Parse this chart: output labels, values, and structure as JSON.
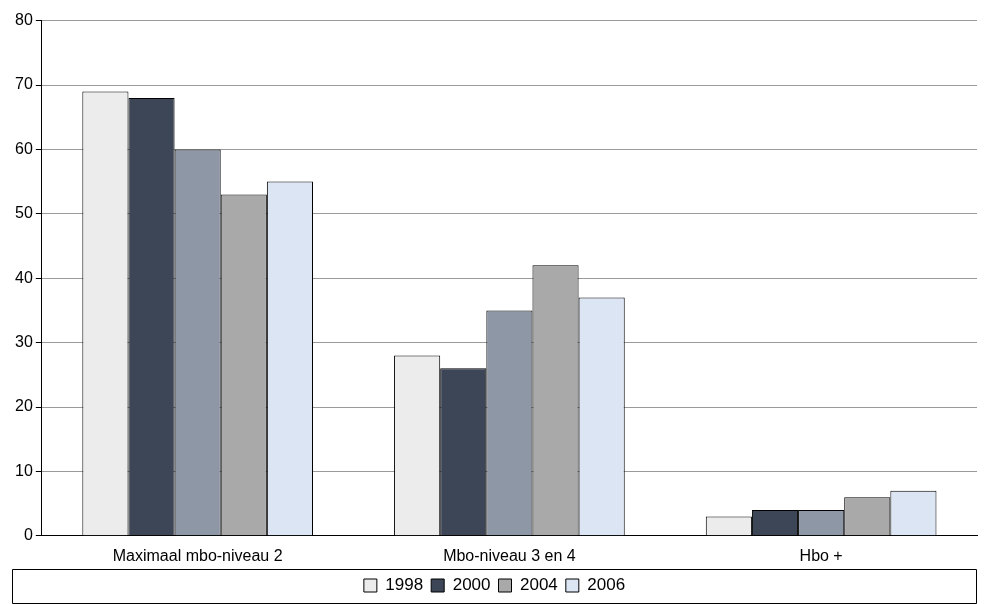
{
  "chart_data": {
    "type": "bar",
    "categories": [
      "Maximaal mbo-niveau 2",
      "Mbo-niveau 3 en 4",
      "Hbo +"
    ],
    "series": [
      {
        "name": "1998",
        "color": "#ececec",
        "values": [
          69,
          28,
          3
        ]
      },
      {
        "name": "2000",
        "color": "#3d4657",
        "values": [
          68,
          26,
          4
        ]
      },
      {
        "color": "#8e97a6",
        "values": [
          60,
          35,
          4
        ]
      },
      {
        "name": "2004",
        "color": "#a9a9a9",
        "values": [
          53,
          42,
          6
        ]
      },
      {
        "name": "2006",
        "color": "#dce5f4",
        "values": [
          55,
          37,
          7
        ]
      }
    ],
    "ylim": [
      0,
      80
    ],
    "yticks": [
      0,
      10,
      20,
      30,
      40,
      50,
      60,
      70,
      80
    ],
    "grid": "y",
    "legend": "bottom"
  }
}
